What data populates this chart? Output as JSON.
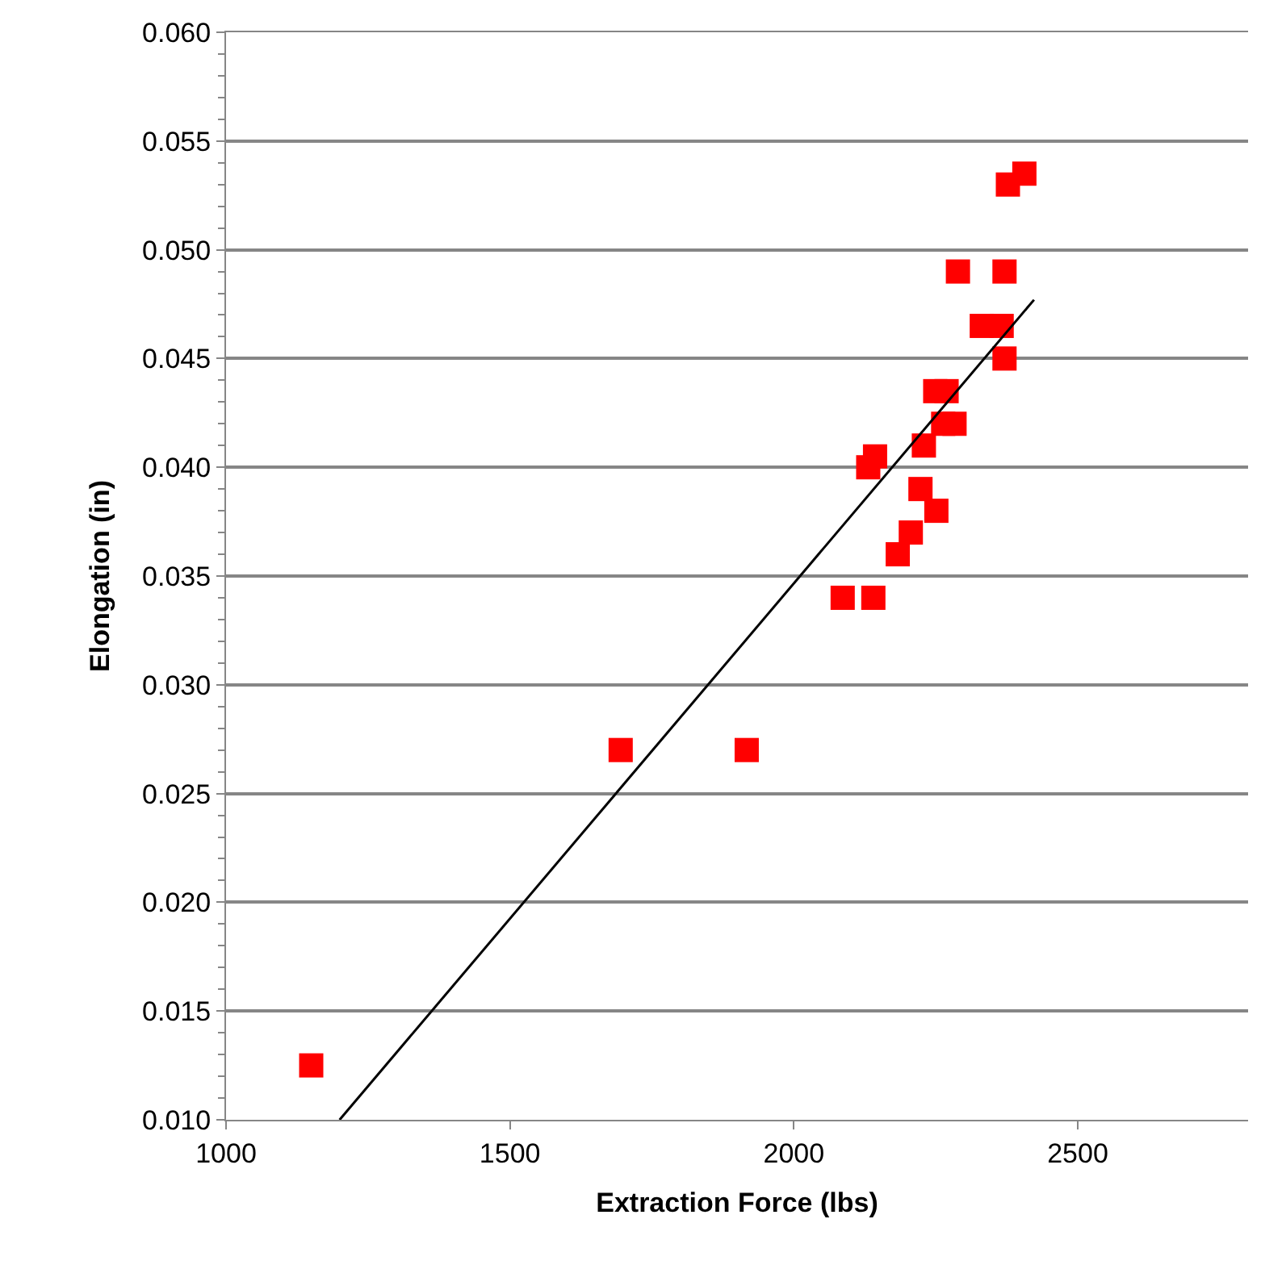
{
  "chart_data": {
    "type": "scatter",
    "xlabel": "Extraction Force (lbs)",
    "ylabel": "Elongation (in)",
    "xlim": [
      1000,
      2800
    ],
    "xticks": [
      1000,
      1500,
      2000,
      2500
    ],
    "ylim": [
      0.01,
      0.06
    ],
    "yticks": [
      {
        "value": 0.01,
        "label": "0.010"
      },
      {
        "value": 0.015,
        "label": "0.015"
      },
      {
        "value": 0.02,
        "label": "0.020"
      },
      {
        "value": 0.025,
        "label": "0.025"
      },
      {
        "value": 0.03,
        "label": "0.030"
      },
      {
        "value": 0.035,
        "label": "0.035"
      },
      {
        "value": 0.04,
        "label": "0.040"
      },
      {
        "value": 0.045,
        "label": "0.045"
      },
      {
        "value": 0.05,
        "label": "0.050"
      },
      {
        "value": 0.055,
        "label": "0.055"
      },
      {
        "value": 0.06,
        "label": "0.060"
      }
    ],
    "grid": "y",
    "series": [
      {
        "marker": "square",
        "color": "#ff0000",
        "x": [
          1150,
          1695,
          1917,
          2086,
          2140,
          2183,
          2206,
          2223,
          2251,
          2131,
          2143,
          2229,
          2249,
          2269,
          2263,
          2283,
          2289,
          2331,
          2366,
          2371,
          2371,
          2377,
          2406
        ],
        "values": [
          0.0125,
          0.027,
          0.027,
          0.034,
          0.034,
          0.036,
          0.037,
          0.039,
          0.038,
          0.04,
          0.0405,
          0.041,
          0.0435,
          0.0435,
          0.042,
          0.042,
          0.049,
          0.0465,
          0.0465,
          0.049,
          0.045,
          0.053,
          0.0535
        ]
      },
      {
        "type": "line",
        "marker": "none",
        "color": "#000000",
        "x": [
          1200,
          2423
        ],
        "values": [
          0.01,
          0.0477
        ]
      }
    ]
  }
}
